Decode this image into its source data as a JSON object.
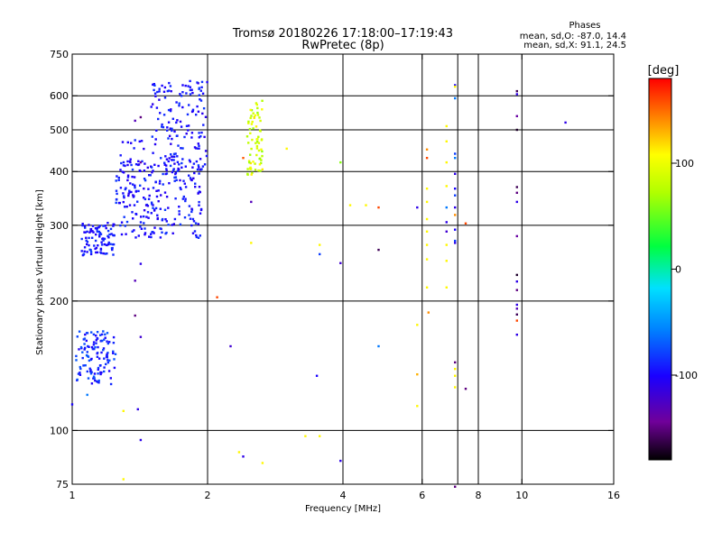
{
  "header": {
    "title": "Tromsø 20180226 17:18:00–17:19:43",
    "subtitle": "RwPretec (8p)"
  },
  "stats": {
    "heading": "Phases",
    "line_o": "mean, sd,O:  -87.0, 14.4",
    "line_x": "mean, sd,X:  91.1, 24.5"
  },
  "chart_data": {
    "type": "scatter",
    "title": "Tromsø 20180226 17:18:00–17:19:43",
    "subtitle": "RwPretec (8p)",
    "xlabel": "Frequency [MHz]",
    "ylabel": "Stationary phase Virtual Height [km]",
    "x_scale": "log",
    "y_scale": "log",
    "xlim": [
      1,
      16
    ],
    "ylim": [
      75,
      750
    ],
    "x_ticks": [
      1,
      2,
      4,
      6,
      8,
      10,
      16
    ],
    "x_grid": [
      2,
      4,
      6,
      7.2,
      8,
      10
    ],
    "y_ticks": [
      75,
      100,
      200,
      300,
      400,
      500,
      600,
      750
    ],
    "y_grid": [
      100,
      200,
      300,
      400,
      500,
      600
    ],
    "colorbar": {
      "label": "[deg]",
      "range": [
        -180,
        180
      ],
      "ticks": [
        -100,
        0,
        100
      ],
      "colormap": "rainbow"
    },
    "clusters": [
      {
        "x": [
          1.05,
          1.25
        ],
        "y": [
          255,
          305
        ],
        "phase": [
          -105,
          -80
        ],
        "n": 95
      },
      {
        "x": [
          1.25,
          1.95
        ],
        "y": [
          280,
          430
        ],
        "phase": [
          -110,
          -80
        ],
        "n": 220
      },
      {
        "x": [
          1.5,
          2.0
        ],
        "y": [
          400,
          650
        ],
        "phase": [
          -110,
          -80
        ],
        "n": 150
      },
      {
        "x": [
          1.28,
          1.45
        ],
        "y": [
          330,
          480
        ],
        "phase": [
          -110,
          -85
        ],
        "n": 30
      },
      {
        "x": [
          1.02,
          1.25
        ],
        "y": [
          128,
          170
        ],
        "phase": [
          -105,
          -70
        ],
        "n": 120
      },
      {
        "x": [
          2.45,
          2.65
        ],
        "y": [
          390,
          590
        ],
        "phase": [
          60,
          115
        ],
        "n": 70
      }
    ],
    "points": [
      {
        "x": 2.1,
        "y": 204,
        "phase": 160
      },
      {
        "x": 2.25,
        "y": 157,
        "phase": -120
      },
      {
        "x": 2.5,
        "y": 340,
        "phase": -130
      },
      {
        "x": 2.4,
        "y": 430,
        "phase": 155
      },
      {
        "x": 2.35,
        "y": 89,
        "phase": 110
      },
      {
        "x": 2.4,
        "y": 87,
        "phase": -110
      },
      {
        "x": 2.5,
        "y": 273,
        "phase": 110
      },
      {
        "x": 2.65,
        "y": 84,
        "phase": 110
      },
      {
        "x": 3.0,
        "y": 452,
        "phase": 110
      },
      {
        "x": 3.3,
        "y": 97,
        "phase": 110
      },
      {
        "x": 3.55,
        "y": 97,
        "phase": 110
      },
      {
        "x": 3.55,
        "y": 270,
        "phase": 110
      },
      {
        "x": 3.55,
        "y": 257,
        "phase": -80
      },
      {
        "x": 3.5,
        "y": 134,
        "phase": -100
      },
      {
        "x": 3.95,
        "y": 420,
        "phase": 60
      },
      {
        "x": 3.95,
        "y": 245,
        "phase": -120
      },
      {
        "x": 3.95,
        "y": 85,
        "phase": -110
      },
      {
        "x": 4.15,
        "y": 334,
        "phase": 110
      },
      {
        "x": 4.5,
        "y": 334,
        "phase": 110
      },
      {
        "x": 4.8,
        "y": 330,
        "phase": 160
      },
      {
        "x": 4.8,
        "y": 263,
        "phase": -160
      },
      {
        "x": 4.8,
        "y": 157,
        "phase": -60
      },
      {
        "x": 5.85,
        "y": 330,
        "phase": -110
      },
      {
        "x": 5.85,
        "y": 176,
        "phase": 110
      },
      {
        "x": 5.85,
        "y": 135,
        "phase": 130
      },
      {
        "x": 5.85,
        "y": 114,
        "phase": 110
      },
      {
        "x": 6.15,
        "y": 450,
        "phase": 140
      },
      {
        "x": 6.15,
        "y": 430,
        "phase": 160
      },
      {
        "x": 6.15,
        "y": 365,
        "phase": 110
      },
      {
        "x": 6.15,
        "y": 340,
        "phase": 110
      },
      {
        "x": 6.15,
        "y": 310,
        "phase": 110
      },
      {
        "x": 6.15,
        "y": 290,
        "phase": 110
      },
      {
        "x": 6.15,
        "y": 270,
        "phase": 110
      },
      {
        "x": 6.15,
        "y": 250,
        "phase": 110
      },
      {
        "x": 6.15,
        "y": 215,
        "phase": 110
      },
      {
        "x": 6.2,
        "y": 188,
        "phase": 140
      },
      {
        "x": 6.8,
        "y": 510,
        "phase": 110
      },
      {
        "x": 6.8,
        "y": 470,
        "phase": 110
      },
      {
        "x": 6.8,
        "y": 420,
        "phase": 110
      },
      {
        "x": 6.8,
        "y": 370,
        "phase": 110
      },
      {
        "x": 6.8,
        "y": 330,
        "phase": -60
      },
      {
        "x": 6.8,
        "y": 305,
        "phase": -110
      },
      {
        "x": 6.8,
        "y": 290,
        "phase": -120
      },
      {
        "x": 6.8,
        "y": 270,
        "phase": 110
      },
      {
        "x": 6.8,
        "y": 248,
        "phase": 110
      },
      {
        "x": 6.8,
        "y": 215,
        "phase": 110
      },
      {
        "x": 7.1,
        "y": 635,
        "phase": -100
      },
      {
        "x": 7.1,
        "y": 630,
        "phase": 110
      },
      {
        "x": 7.1,
        "y": 592,
        "phase": -60
      },
      {
        "x": 7.1,
        "y": 440,
        "phase": -80
      },
      {
        "x": 7.1,
        "y": 430,
        "phase": -60
      },
      {
        "x": 7.1,
        "y": 395,
        "phase": -110
      },
      {
        "x": 7.1,
        "y": 365,
        "phase": -100
      },
      {
        "x": 7.1,
        "y": 352,
        "phase": -80
      },
      {
        "x": 7.1,
        "y": 330,
        "phase": -110
      },
      {
        "x": 7.1,
        "y": 317,
        "phase": 140
      },
      {
        "x": 7.1,
        "y": 293,
        "phase": -100
      },
      {
        "x": 7.1,
        "y": 276,
        "phase": -80
      },
      {
        "x": 7.1,
        "y": 273,
        "phase": -110
      },
      {
        "x": 7.1,
        "y": 144,
        "phase": -150
      },
      {
        "x": 7.1,
        "y": 139,
        "phase": 110
      },
      {
        "x": 7.1,
        "y": 134,
        "phase": 110
      },
      {
        "x": 7.1,
        "y": 126,
        "phase": 110
      },
      {
        "x": 7.1,
        "y": 74,
        "phase": -150
      },
      {
        "x": 7.5,
        "y": 303,
        "phase": 160
      },
      {
        "x": 7.5,
        "y": 125,
        "phase": -150
      },
      {
        "x": 9.75,
        "y": 615,
        "phase": -160
      },
      {
        "x": 9.75,
        "y": 605,
        "phase": -110
      },
      {
        "x": 9.75,
        "y": 538,
        "phase": -140
      },
      {
        "x": 9.75,
        "y": 500,
        "phase": -170
      },
      {
        "x": 9.75,
        "y": 368,
        "phase": -160
      },
      {
        "x": 9.75,
        "y": 357,
        "phase": -150
      },
      {
        "x": 9.75,
        "y": 340,
        "phase": -110
      },
      {
        "x": 9.75,
        "y": 283,
        "phase": -140
      },
      {
        "x": 9.75,
        "y": 230,
        "phase": -170
      },
      {
        "x": 9.75,
        "y": 222,
        "phase": -110
      },
      {
        "x": 9.75,
        "y": 212,
        "phase": -150
      },
      {
        "x": 9.75,
        "y": 196,
        "phase": -110
      },
      {
        "x": 9.75,
        "y": 192,
        "phase": -130
      },
      {
        "x": 9.75,
        "y": 186,
        "phase": -160
      },
      {
        "x": 9.75,
        "y": 180,
        "phase": 160
      },
      {
        "x": 9.75,
        "y": 167,
        "phase": -110
      },
      {
        "x": 12.5,
        "y": 520,
        "phase": -110
      },
      {
        "x": 1.3,
        "y": 111,
        "phase": 110
      },
      {
        "x": 1.3,
        "y": 77,
        "phase": 110
      },
      {
        "x": 1.4,
        "y": 112,
        "phase": -110
      },
      {
        "x": 1.42,
        "y": 95,
        "phase": -110
      },
      {
        "x": 1.38,
        "y": 223,
        "phase": -130
      },
      {
        "x": 1.38,
        "y": 185,
        "phase": -150
      },
      {
        "x": 1.42,
        "y": 165,
        "phase": -120
      },
      {
        "x": 1.42,
        "y": 244,
        "phase": -110
      },
      {
        "x": 1.42,
        "y": 420,
        "phase": -140
      },
      {
        "x": 1.42,
        "y": 535,
        "phase": -150
      },
      {
        "x": 1.38,
        "y": 525,
        "phase": -130
      },
      {
        "x": 1.08,
        "y": 121,
        "phase": -60
      },
      {
        "x": 1.0,
        "y": 115,
        "phase": -100
      }
    ]
  }
}
